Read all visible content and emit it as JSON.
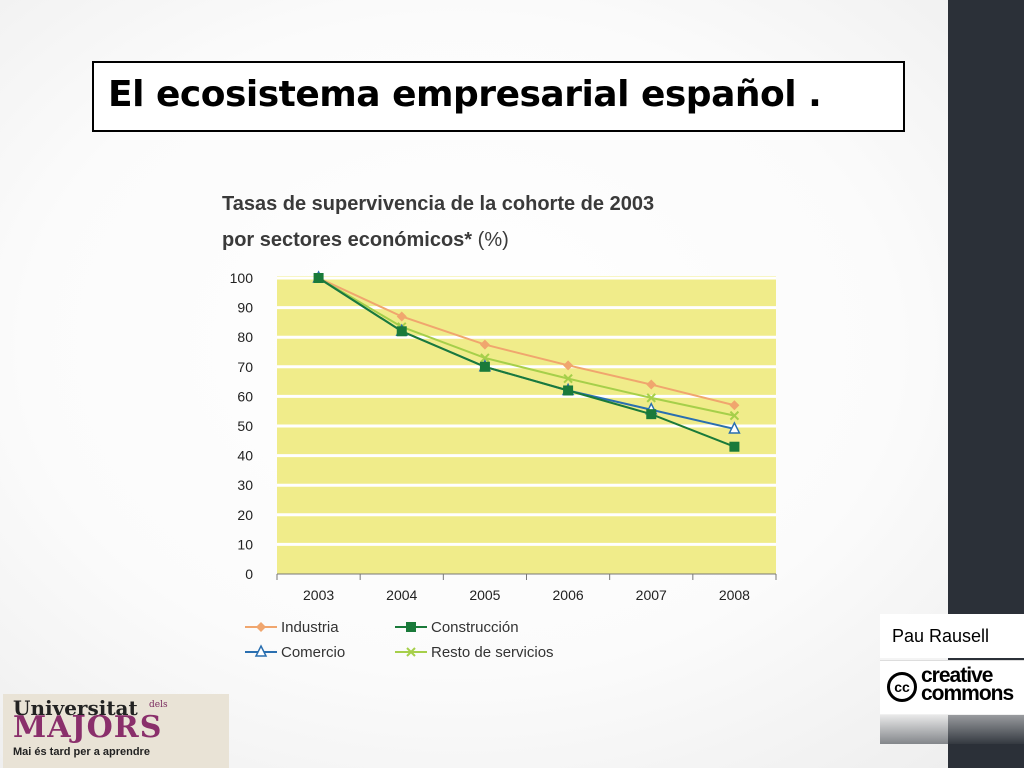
{
  "slide": {
    "title": "El ecosistema empresarial español .",
    "author": "Pau Rausell",
    "cc_logo": {
      "symbol": "cc",
      "line1": "creative",
      "line2": "commons"
    },
    "university_logo": {
      "line1": "Universitat",
      "small": "dels",
      "line2": "MAJORS",
      "tagline": "Mai és tard per a aprendre"
    }
  },
  "chart_data": {
    "type": "line",
    "title_line1": "Tasas de supervivencia de la cohorte de 2003",
    "title_line2": "por sectores económicos*",
    "unit": "(%)",
    "categories": [
      "2003",
      "2004",
      "2005",
      "2006",
      "2007",
      "2008"
    ],
    "ylim": [
      0,
      100
    ],
    "yticks": [
      0,
      10,
      20,
      30,
      40,
      50,
      60,
      70,
      80,
      90,
      100
    ],
    "grid": true,
    "legend_position": "bottom",
    "series": [
      {
        "name": "Industria",
        "values": [
          100,
          87,
          77.5,
          70.5,
          64,
          57
        ],
        "color": "#f0a66e",
        "marker": "diamond"
      },
      {
        "name": "Construcción",
        "values": [
          100,
          82,
          70,
          62,
          54,
          43
        ],
        "color": "#1a7a3a",
        "marker": "square"
      },
      {
        "name": "Comercio",
        "values": [
          100,
          82,
          70,
          62,
          55.5,
          49
        ],
        "color": "#2a6fb0",
        "marker": "triangle"
      },
      {
        "name": "Resto de servicios",
        "values": [
          100,
          83.5,
          73,
          66,
          59.5,
          53.5
        ],
        "color": "#a6cf4a",
        "marker": "x"
      }
    ],
    "colors": {
      "plot_background": "#f0ec8a",
      "grid": "#ffffff"
    }
  }
}
